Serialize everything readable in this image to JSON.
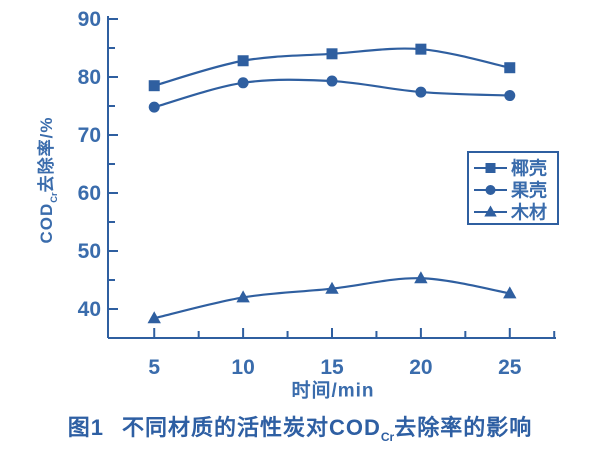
{
  "colors": {
    "line": "#2f5fa0",
    "tick_text": "#3a6cac",
    "caption_text": "#2e5fa3",
    "background": "#ffffff"
  },
  "figure": {
    "caption": {
      "fig_label": "图1",
      "title_pre": "不同材质的活性炭对COD",
      "title_sub": "Cr",
      "title_post": "去除率的影响"
    }
  },
  "chart_data": {
    "type": "line",
    "title": "图1 不同材质的活性炭对COD_Cr去除率的影响",
    "xlabel": "时间/min",
    "ylabel": "COD_Cr去除率/%",
    "ylabel_parts": {
      "pre": "COD",
      "sub": "Cr",
      "post": "去除率/%"
    },
    "x": [
      5,
      10,
      15,
      20,
      25
    ],
    "series": [
      {
        "name": "椰壳",
        "marker": "square",
        "values": [
          78.5,
          82.8,
          84.0,
          84.8,
          81.6
        ]
      },
      {
        "name": "果壳",
        "marker": "circle",
        "values": [
          74.8,
          79.0,
          79.3,
          77.4,
          76.8
        ]
      },
      {
        "name": "木材",
        "marker": "triangle",
        "values": [
          38.4,
          42.0,
          43.5,
          45.3,
          42.7
        ]
      }
    ],
    "xlim": [
      2.4,
      27.6
    ],
    "ylim": [
      35,
      90
    ],
    "yticks_major": [
      40,
      50,
      60,
      70,
      80,
      90
    ],
    "yticks_minor": [
      45,
      55,
      65,
      75,
      85
    ],
    "xticks_major": [
      5,
      10,
      15,
      20,
      25
    ],
    "xticks_minor": [
      7.5,
      12.5,
      17.5,
      22.5,
      27.5
    ],
    "grid": false,
    "legend": {
      "position": "right-middle",
      "border": true,
      "entries": [
        "椰壳",
        "果壳",
        "木材"
      ]
    }
  }
}
